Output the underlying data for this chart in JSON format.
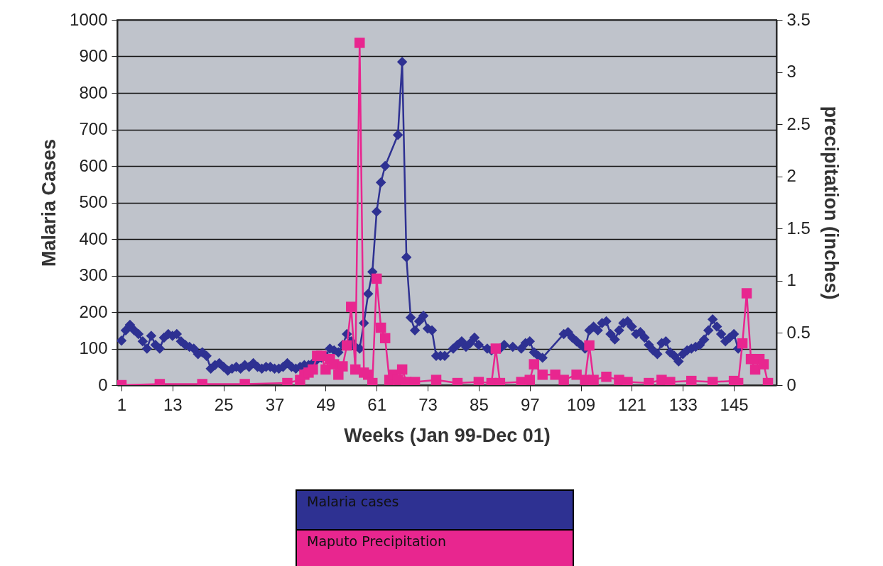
{
  "chart_data": {
    "type": "line",
    "xlabel": "Weeks (Jan 99-Dec 01)",
    "ylabel": "Malaria Cases",
    "y2label": "precipitation (inches)",
    "xlim": [
      0,
      155
    ],
    "xticks": [
      1,
      13,
      25,
      37,
      49,
      61,
      73,
      85,
      97,
      109,
      121,
      133,
      145
    ],
    "ylim": [
      0,
      1000
    ],
    "yticks": [
      0,
      100,
      200,
      300,
      400,
      500,
      600,
      700,
      800,
      900,
      1000
    ],
    "y2lim": [
      0,
      3.5
    ],
    "y2ticks": [
      0,
      0.5,
      1,
      1.5,
      2,
      2.5,
      3,
      3.5
    ],
    "grid": "y",
    "legend": "bottom",
    "series": [
      {
        "name": "Malaria cases",
        "color": "#2e3192",
        "marker": "diamond",
        "x": [
          1,
          2,
          3,
          4,
          5,
          6,
          7,
          8,
          9,
          10,
          11,
          12,
          13,
          14,
          15,
          16,
          17,
          18,
          19,
          20,
          21,
          22,
          23,
          24,
          25,
          26,
          27,
          28,
          29,
          30,
          31,
          32,
          33,
          34,
          35,
          36,
          37,
          38,
          39,
          40,
          41,
          42,
          43,
          44,
          45,
          46,
          47,
          48,
          49,
          50,
          51,
          52,
          53,
          54,
          55,
          56,
          57,
          58,
          59,
          60,
          61,
          62,
          63,
          66,
          67,
          68,
          69,
          70,
          71,
          72,
          73,
          74,
          75,
          76,
          77,
          79,
          80,
          81,
          82,
          83,
          84,
          85,
          87,
          88,
          90,
          91,
          93,
          95,
          96,
          97,
          98,
          99,
          100,
          105,
          106,
          107,
          108,
          109,
          110,
          111,
          112,
          113,
          114,
          115,
          116,
          117,
          118,
          119,
          120,
          121,
          122,
          123,
          124,
          125,
          126,
          127,
          128,
          129,
          130,
          131,
          132,
          133,
          134,
          135,
          136,
          137,
          138,
          139,
          140,
          141,
          142,
          143,
          144,
          145,
          146
        ],
        "values": [
          122,
          150,
          165,
          150,
          140,
          120,
          100,
          135,
          110,
          100,
          130,
          140,
          135,
          140,
          120,
          110,
          105,
          100,
          85,
          90,
          80,
          45,
          55,
          60,
          50,
          40,
          45,
          50,
          45,
          55,
          50,
          60,
          50,
          45,
          50,
          50,
          45,
          45,
          50,
          60,
          50,
          45,
          50,
          55,
          55,
          60,
          70,
          75,
          80,
          100,
          95,
          90,
          110,
          140,
          120,
          105,
          100,
          170,
          250,
          310,
          475,
          555,
          600,
          685,
          885,
          350,
          185,
          150,
          175,
          190,
          155,
          150,
          80,
          80,
          80,
          100,
          110,
          120,
          105,
          115,
          130,
          110,
          100,
          95,
          100,
          110,
          105,
          100,
          115,
          120,
          90,
          80,
          75,
          140,
          145,
          130,
          120,
          110,
          100,
          150,
          160,
          150,
          170,
          175,
          140,
          125,
          150,
          170,
          175,
          160,
          140,
          145,
          130,
          110,
          95,
          85,
          115,
          120,
          90,
          80,
          65,
          85,
          95,
          100,
          105,
          110,
          125,
          150,
          180,
          160,
          140,
          120,
          130,
          140,
          100
        ]
      },
      {
        "name": "Maputo Precipitation",
        "color": "#e8268f",
        "marker": "square",
        "axis": "y2",
        "x": [
          1,
          10,
          20,
          30,
          40,
          43,
          44,
          45,
          46,
          47,
          48,
          49,
          50,
          51,
          52,
          53,
          54,
          55,
          56,
          57,
          58,
          59,
          60,
          61,
          62,
          63,
          64,
          65,
          66,
          67,
          68,
          70,
          75,
          80,
          85,
          88,
          89,
          90,
          95,
          97,
          98,
          100,
          103,
          105,
          108,
          110,
          111,
          112,
          115,
          118,
          120,
          125,
          128,
          130,
          135,
          140,
          145,
          146,
          147,
          148,
          149,
          150,
          151,
          152,
          153
        ],
        "values": [
          0,
          0.01,
          0.01,
          0.01,
          0.02,
          0.05,
          0.1,
          0.12,
          0.15,
          0.28,
          0.28,
          0.15,
          0.25,
          0.2,
          0.1,
          0.18,
          0.38,
          0.75,
          0.15,
          3.28,
          0.12,
          0.1,
          0.02,
          1.02,
          0.55,
          0.45,
          0.05,
          0.1,
          0.05,
          0.15,
          0.03,
          0.03,
          0.05,
          0.02,
          0.03,
          0.02,
          0.35,
          0.02,
          0.03,
          0.05,
          0.2,
          0.1,
          0.1,
          0.05,
          0.1,
          0.05,
          0.38,
          0.05,
          0.08,
          0.05,
          0.03,
          0.02,
          0.05,
          0.03,
          0.04,
          0.03,
          0.04,
          0.02,
          0.4,
          0.88,
          0.25,
          0.15,
          0.25,
          0.2,
          0.02
        ]
      }
    ]
  }
}
